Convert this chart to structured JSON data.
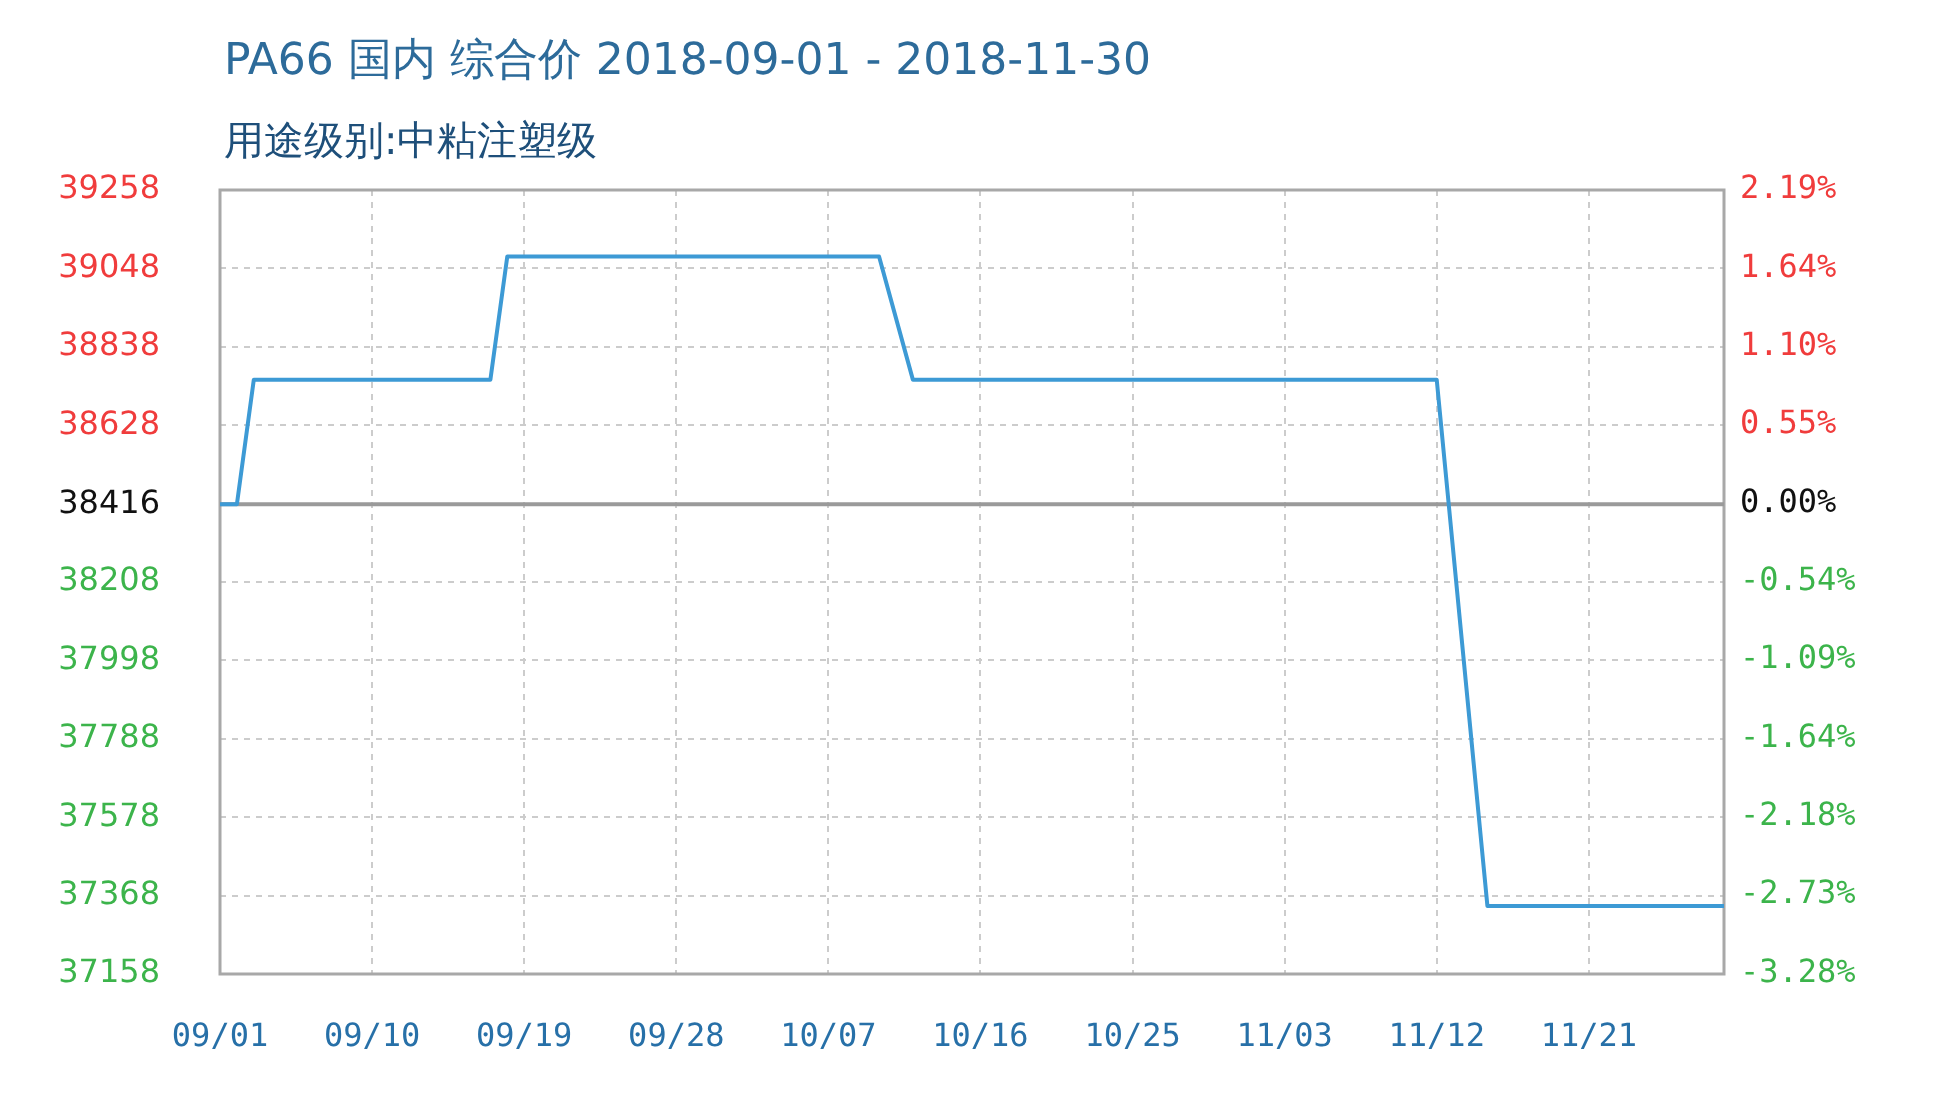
{
  "chart_data": {
    "type": "line",
    "title": "PA66 国内 综合价 2018-09-01 - 2018-11-30",
    "subtitle": "用途级别:中粘注塑级",
    "x": [
      "2018-09-01",
      "2018-09-02",
      "2018-09-03",
      "2018-09-17",
      "2018-09-18",
      "2018-10-10",
      "2018-10-12",
      "2018-11-12",
      "2018-11-15",
      "2018-11-29"
    ],
    "series": [
      {
        "color": "#3d9ad5",
        "values": [
          38416,
          38416,
          38750,
          38750,
          39080,
          39080,
          38750,
          38750,
          37340,
          37340
        ]
      }
    ],
    "xlim": [
      "2018-09-01",
      "2018-11-29"
    ],
    "xticks": [
      {
        "value": "2018-09-01",
        "label": "09/01"
      },
      {
        "value": "2018-09-10",
        "label": "09/10"
      },
      {
        "value": "2018-09-19",
        "label": "09/19"
      },
      {
        "value": "2018-09-28",
        "label": "09/28"
      },
      {
        "value": "2018-10-07",
        "label": "10/07"
      },
      {
        "value": "2018-10-16",
        "label": "10/16"
      },
      {
        "value": "2018-10-25",
        "label": "10/25"
      },
      {
        "value": "2018-11-03",
        "label": "11/03"
      },
      {
        "value": "2018-11-12",
        "label": "11/12"
      },
      {
        "value": "2018-11-21",
        "label": "11/21"
      }
    ],
    "ylim": [
      37158,
      39258
    ],
    "yticks": [
      37158,
      37368,
      37578,
      37788,
      37998,
      38208,
      38416,
      38628,
      38838,
      39048,
      39258
    ],
    "y2lim": [
      -3.28,
      2.19
    ],
    "y2ticks": [
      {
        "value": -3.28,
        "label": "-3.28%"
      },
      {
        "value": -2.73,
        "label": "-2.73%"
      },
      {
        "value": -2.18,
        "label": "-2.18%"
      },
      {
        "value": -1.64,
        "label": "-1.64%"
      },
      {
        "value": -1.09,
        "label": "-1.09%"
      },
      {
        "value": -0.54,
        "label": "-0.54%"
      },
      {
        "value": 0,
        "label": "0.00%"
      },
      {
        "value": 0.55,
        "label": "0.55%"
      },
      {
        "value": 1.1,
        "label": "1.10%"
      },
      {
        "value": 1.64,
        "label": "1.64%"
      },
      {
        "value": 2.19,
        "label": "2.19%"
      }
    ],
    "ref_lines": [
      {
        "axis": "y",
        "value": 38416,
        "color": "#9a9a9a"
      }
    ],
    "grid": true,
    "legend": false,
    "marker": "none",
    "line_style": "solid"
  }
}
